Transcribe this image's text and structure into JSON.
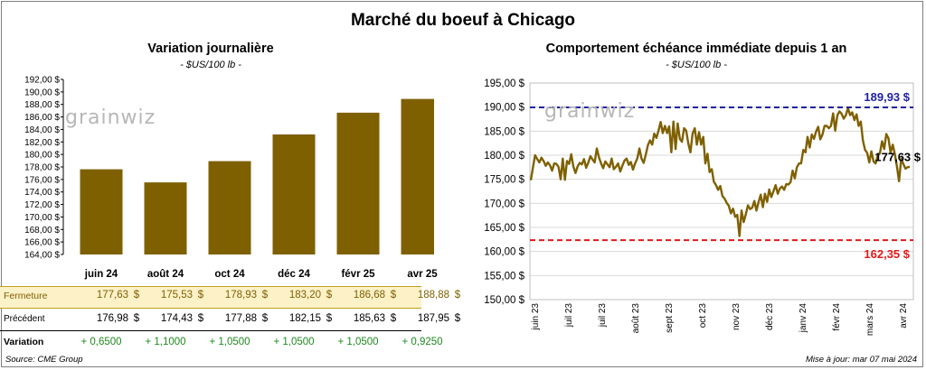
{
  "title": "Marché du boeuf à Chicago",
  "watermark": "grainwiz",
  "source": "Source: CME Group",
  "updated": "Mise à jour: mar 07 mai 2024",
  "colors": {
    "bar": "#7f6000",
    "line": "#7f6000",
    "max_line": "#1f1fa0",
    "min_line": "#e01a1a",
    "band": "#fdf1c8",
    "green": "#1e8a1e"
  },
  "left": {
    "title": "Variation  journalière",
    "unit": "- $US/100 lb -",
    "row_labels": {
      "close": "Fermeture",
      "previous": "Précédent",
      "variation": "Variation"
    },
    "dollar": "$",
    "columns": [
      {
        "month": "juin 24",
        "close": "177,63",
        "previous": "176,98",
        "variation": "+ 0,6500"
      },
      {
        "month": "août 24",
        "close": "175,53",
        "previous": "174,43",
        "variation": "+ 1,1000"
      },
      {
        "month": "oct 24",
        "close": "178,93",
        "previous": "177,88",
        "variation": "+ 1,0500"
      },
      {
        "month": "déc 24",
        "close": "183,20",
        "previous": "182,15",
        "variation": "+ 1,0500"
      },
      {
        "month": "févr 25",
        "close": "186,68",
        "previous": "185,63",
        "variation": "+ 1,0500"
      },
      {
        "month": "avr 25",
        "close": "188,88",
        "previous": "187,95",
        "variation": "+ 0,9250"
      }
    ]
  },
  "right": {
    "title": "Comportement  échéance immédiate depuis 1 an",
    "unit": "- $US/100 lb -",
    "max_label": "189,93 $",
    "min_label": "162,35 $",
    "last_label": "177,63 $"
  },
  "chart_data": [
    {
      "type": "bar",
      "title": "Variation  journalière",
      "categories": [
        "juin 24",
        "août 24",
        "oct 24",
        "déc 24",
        "févr 25",
        "avr 25"
      ],
      "values": [
        177.63,
        175.53,
        178.93,
        183.2,
        186.68,
        188.88
      ],
      "ylim": [
        164,
        192
      ],
      "ytick_step": 2,
      "ytick_labels": [
        "164,00 $",
        "166,00 $",
        "168,00 $",
        "170,00 $",
        "172,00 $",
        "174,00 $",
        "176,00 $",
        "178,00 $",
        "180,00 $",
        "182,00 $",
        "184,00 $",
        "186,00 $",
        "188,00 $",
        "190,00 $",
        "192,00 $"
      ],
      "grid": false
    },
    {
      "type": "line",
      "title": "Comportement  échéance immédiate depuis 1 an",
      "ylim": [
        150,
        195
      ],
      "ytick_labels": [
        "150,00 $",
        "155,00 $",
        "160,00 $",
        "165,00 $",
        "170,00 $",
        "175,00 $",
        "180,00 $",
        "185,00 $",
        "190,00 $",
        "195,00 $"
      ],
      "xtick_labels": [
        "juin 23",
        "juil 23",
        "juil 23",
        "août 23",
        "sept 23",
        "oct 23",
        "nov 23",
        "déc 23",
        "janv 24",
        "févr 24",
        "mars 24",
        "avr 24"
      ],
      "grid": true,
      "reference_lines": [
        {
          "value": 189.93,
          "label": "189,93 $"
        },
        {
          "value": 162.35,
          "label": "162,35 $"
        }
      ],
      "last_value": 177.63,
      "values": [
        174.8,
        177.5,
        180.0,
        179.2,
        178.5,
        179.5,
        178.8,
        177.8,
        178.5,
        177.9,
        176.8,
        178.3,
        178.2,
        177.6,
        175.0,
        179.3,
        174.9,
        178.8,
        178.2,
        180.2,
        177.6,
        176.3,
        177.7,
        178.4,
        178.1,
        179.2,
        177.4,
        178.5,
        179.8,
        179.1,
        178.5,
        181.4,
        179.6,
        178.3,
        177.3,
        178.7,
        178.1,
        177.5,
        179.3,
        177.1,
        177.6,
        178.3,
        176.6,
        177.8,
        178.9,
        179.3,
        178.0,
        178.6,
        177.0,
        178.3,
        179.3,
        181.4,
        179.3,
        178.4,
        180.1,
        182.1,
        183.1,
        182.2,
        184.5,
        183.6,
        185.1,
        186.9,
        184.6,
        186.1,
        184.6,
        186.0,
        180.6,
        187.0,
        181.3,
        186.6,
        183.4,
        182.8,
        185.6,
        185.1,
        182.4,
        180.6,
        184.5,
        185.6,
        182.2,
        184.8,
        182.2,
        183.8,
        178.3,
        180.3,
        176.5,
        177.1,
        174.5,
        173.8,
        172.8,
        173.6,
        171.5,
        171.0,
        170.1,
        169.5,
        167.9,
        168.9,
        167.2,
        167.6,
        163.2,
        168.5,
        166.1,
        167.7,
        169.6,
        168.8,
        169.1,
        170.5,
        168.5,
        170.3,
        171.8,
        169.2,
        172.0,
        170.3,
        172.9,
        171.3,
        172.5,
        173.8,
        172.0,
        173.1,
        173.5,
        172.8,
        174.0,
        173.9,
        174.4,
        176.8,
        175.2,
        177.5,
        178.3,
        178.3,
        181.1,
        180.6,
        183.8,
        181.6,
        184.3,
        183.4,
        184.9,
        185.9,
        183.3,
        184.3,
        186.1,
        186.1,
        185.6,
        186.1,
        188.7,
        185.1,
        188.3,
        189.1,
        188.6,
        187.6,
        188.3,
        189.8,
        188.3,
        188.9,
        187.3,
        188.5,
        186.1,
        187.0,
        183.1,
        181.1,
        180.5,
        178.5,
        180.8,
        178.7,
        178.3,
        180.0,
        180.4,
        182.9,
        181.3,
        184.4,
        183.5,
        180.5,
        182.2,
        180.3,
        177.6,
        174.6,
        179.3,
        178.2,
        177.2,
        177.5,
        177.6
      ]
    }
  ]
}
